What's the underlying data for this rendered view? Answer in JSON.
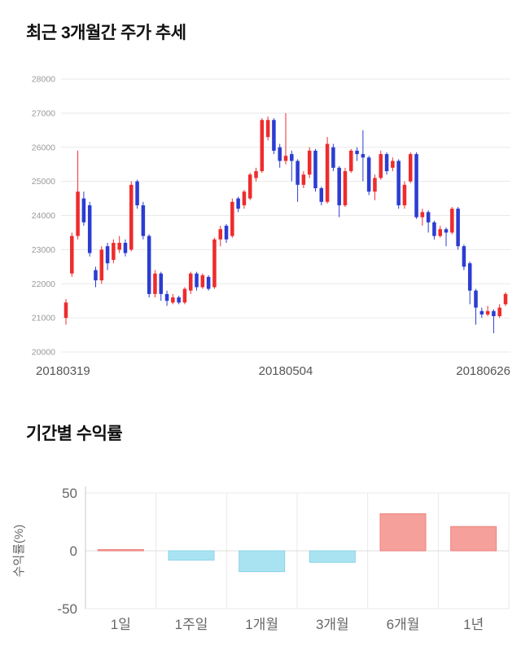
{
  "price_chart_section": {
    "title": "최근 3개월간 주가 추세"
  },
  "returns_chart_section": {
    "title": "기간별 수익률"
  },
  "chart_data": [
    {
      "type": "candlestick",
      "title": "최근 3개월간 주가 추세",
      "ylim": [
        20000,
        28000
      ],
      "y_ticks": [
        28000,
        27000,
        26000,
        25000,
        24000,
        23000,
        22000,
        21000,
        20000
      ],
      "x_tick_labels": [
        "20180319",
        "20180504",
        "20180626"
      ],
      "up_color": "#ee2c2c",
      "down_color": "#2b3dd1",
      "grid_color": "#e9e9e9",
      "y_tick_color": "#999999",
      "x_tick_color": "#555555",
      "candle_format": [
        "open",
        "high",
        "low",
        "close"
      ],
      "candles": [
        [
          21000,
          21550,
          20800,
          21450
        ],
        [
          22300,
          23500,
          22200,
          23400
        ],
        [
          23400,
          25900,
          23300,
          24700
        ],
        [
          24500,
          24700,
          23700,
          23800
        ],
        [
          24300,
          24400,
          22800,
          22900
        ],
        [
          22400,
          22500,
          21900,
          22100
        ],
        [
          22100,
          23100,
          22000,
          23000
        ],
        [
          23100,
          23200,
          22400,
          22600
        ],
        [
          22700,
          23300,
          22600,
          23200
        ],
        [
          23000,
          23400,
          22900,
          23200
        ],
        [
          23200,
          23300,
          22800,
          22900
        ],
        [
          23000,
          25000,
          22950,
          24900
        ],
        [
          25000,
          25050,
          24200,
          24300
        ],
        [
          24300,
          24400,
          23300,
          23400
        ],
        [
          23400,
          23450,
          21600,
          21700
        ],
        [
          21700,
          22400,
          21600,
          22300
        ],
        [
          22300,
          22350,
          21500,
          21700
        ],
        [
          21700,
          21800,
          21350,
          21500
        ],
        [
          21450,
          21700,
          21400,
          21600
        ],
        [
          21600,
          21650,
          21400,
          21450
        ],
        [
          21450,
          21900,
          21400,
          21850
        ],
        [
          21800,
          22350,
          21700,
          22300
        ],
        [
          22300,
          22350,
          21800,
          21900
        ],
        [
          21900,
          22300,
          21850,
          22250
        ],
        [
          22200,
          22250,
          21800,
          21850
        ],
        [
          21900,
          23350,
          21850,
          23300
        ],
        [
          23300,
          23700,
          23100,
          23600
        ],
        [
          23700,
          23750,
          23200,
          23300
        ],
        [
          23400,
          24500,
          23350,
          24400
        ],
        [
          24500,
          24550,
          24100,
          24200
        ],
        [
          24300,
          24750,
          24200,
          24700
        ],
        [
          24500,
          25250,
          24450,
          25200
        ],
        [
          25100,
          25400,
          25000,
          25300
        ],
        [
          25300,
          26850,
          25250,
          26800
        ],
        [
          26300,
          26900,
          26200,
          26800
        ],
        [
          26800,
          26850,
          25800,
          25900
        ],
        [
          26000,
          26100,
          25400,
          25600
        ],
        [
          25600,
          27000,
          25500,
          25750
        ],
        [
          25800,
          25900,
          25000,
          25600
        ],
        [
          25600,
          25650,
          24400,
          24900
        ],
        [
          24900,
          25300,
          24800,
          25200
        ],
        [
          25200,
          26000,
          25100,
          25900
        ],
        [
          25900,
          25950,
          24700,
          24800
        ],
        [
          24800,
          24850,
          24300,
          24400
        ],
        [
          24400,
          26300,
          24350,
          26100
        ],
        [
          26000,
          26100,
          25300,
          25400
        ],
        [
          25400,
          25450,
          23950,
          24300
        ],
        [
          24300,
          25400,
          24250,
          25300
        ],
        [
          25300,
          25950,
          25250,
          25900
        ],
        [
          25900,
          26000,
          25600,
          25800
        ],
        [
          25800,
          26500,
          25000,
          25700
        ],
        [
          25700,
          25750,
          24600,
          24700
        ],
        [
          24700,
          25200,
          24450,
          25100
        ],
        [
          25100,
          25900,
          25050,
          25800
        ],
        [
          25800,
          25850,
          25200,
          25300
        ],
        [
          25400,
          25700,
          25300,
          25600
        ],
        [
          25600,
          25650,
          24200,
          24300
        ],
        [
          24300,
          25000,
          24200,
          24900
        ],
        [
          25000,
          25850,
          24950,
          25800
        ],
        [
          25800,
          25850,
          23900,
          23950
        ],
        [
          23950,
          24200,
          23700,
          24100
        ],
        [
          24100,
          24150,
          23500,
          23800
        ],
        [
          23800,
          23850,
          23300,
          23400
        ],
        [
          23400,
          23700,
          23350,
          23600
        ],
        [
          23600,
          23650,
          23100,
          23500
        ],
        [
          23500,
          24250,
          23450,
          24200
        ],
        [
          24200,
          24250,
          23000,
          23100
        ],
        [
          23100,
          23150,
          22400,
          22500
        ],
        [
          22600,
          22650,
          21400,
          21800
        ],
        [
          21800,
          21850,
          20800,
          21300
        ],
        [
          21200,
          21300,
          21000,
          21100
        ],
        [
          21100,
          21350,
          21050,
          21200
        ],
        [
          21200,
          21250,
          20550,
          21050
        ],
        [
          21050,
          21400,
          21000,
          21300
        ],
        [
          21400,
          21750,
          21350,
          21700
        ]
      ]
    },
    {
      "type": "bar",
      "title": "기간별 수익률",
      "categories": [
        "1일",
        "1주일",
        "1개월",
        "3개월",
        "6개월",
        "1년"
      ],
      "values": [
        1,
        -8,
        -18,
        -10,
        32,
        21
      ],
      "ylabel": "수익률(%)",
      "ylim": [
        -50,
        50
      ],
      "y_ticks": [
        50,
        0,
        -50
      ],
      "positive_color": "#f5a09b",
      "positive_border": "#ec827c",
      "negative_color": "#a9e3f1",
      "negative_border": "#8ad4e8",
      "grid_color": "#e9e9e9",
      "axis_color": "#c8c8c8",
      "label_color": "#666666"
    }
  ]
}
